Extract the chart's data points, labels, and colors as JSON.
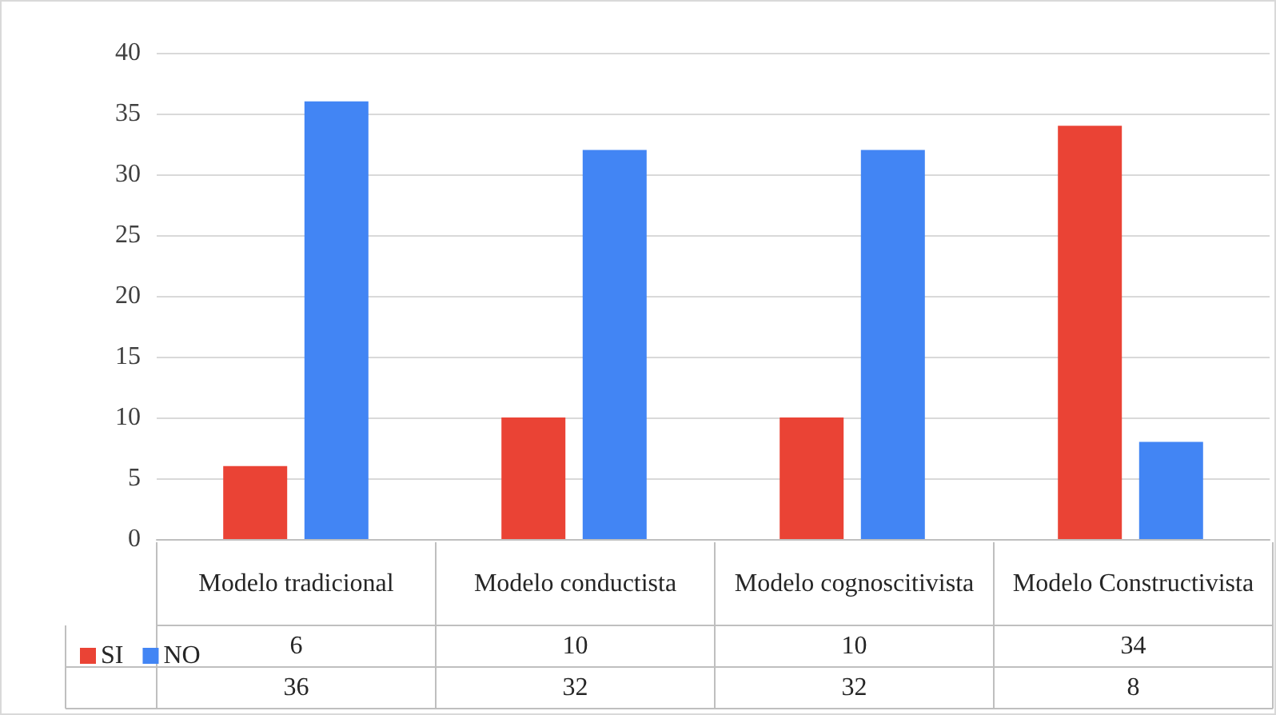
{
  "chart_data": {
    "type": "bar",
    "categories": [
      "Modelo tradicional",
      "Modelo conductista",
      "Modelo cognoscitivista",
      "Modelo Constructivista"
    ],
    "series": [
      {
        "name": "SI",
        "color": "#ea4335",
        "values": [
          6,
          10,
          10,
          34
        ]
      },
      {
        "name": "NO",
        "color": "#4285f4",
        "values": [
          36,
          32,
          32,
          8
        ]
      }
    ],
    "ylim": [
      0,
      40
    ],
    "yticks": [
      0,
      5,
      10,
      15,
      20,
      25,
      30,
      35,
      40
    ],
    "grid": "y",
    "legend": "bottom left",
    "data_labels": true
  }
}
